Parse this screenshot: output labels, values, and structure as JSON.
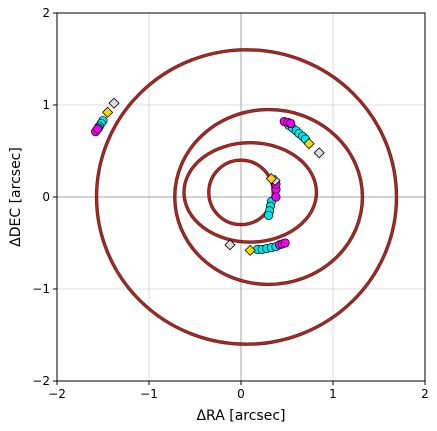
{
  "chart_data": {
    "type": "scatter",
    "title": "",
    "xlabel": "ΔRA [arcsec]",
    "ylabel": "ΔDEC [arcsec]",
    "xlim": [
      -2,
      2
    ],
    "ylim": [
      -2,
      2
    ],
    "xticks": [
      -2,
      -1,
      0,
      1,
      2
    ],
    "yticks": [
      -2,
      -1,
      0,
      1,
      2
    ],
    "xtick_labels": [
      "−2",
      "−1",
      "0",
      "1",
      "2"
    ],
    "ytick_labels": [
      "−2",
      "−1",
      "0",
      "1",
      "2"
    ],
    "grid": true,
    "origin_lines": true,
    "colors": {
      "orbit_model": "#1a1a1a",
      "orbit_fit": "#cc1a10",
      "data_primary": "#00e5e5",
      "data_secondary": "#ee00ee",
      "marker_start": "#dcdcdc",
      "marker_end": "#ffd700"
    },
    "orbits": [
      {
        "cx": 0.0,
        "cy": 0.05,
        "rx": 0.35,
        "ry": 0.35,
        "tilt": 0
      },
      {
        "cx": 0.1,
        "cy": 0.05,
        "rx": 0.72,
        "ry": 0.54,
        "tilt": 0
      },
      {
        "cx": 0.3,
        "cy": 0.0,
        "rx": 1.02,
        "ry": 0.95,
        "tilt": 0
      },
      {
        "cx": 0.06,
        "cy": 0.0,
        "rx": 1.63,
        "ry": 1.6,
        "tilt": 0
      }
    ],
    "series": [
      {
        "color": "#00e5e5",
        "points": [
          [
            -1.5,
            0.83
          ],
          [
            -1.52,
            0.8
          ],
          [
            -1.54,
            0.77
          ],
          [
            -1.55,
            0.75
          ],
          [
            0.52,
            0.78
          ],
          [
            0.56,
            0.75
          ],
          [
            0.6,
            0.72
          ],
          [
            0.63,
            0.69
          ],
          [
            0.67,
            0.66
          ],
          [
            0.7,
            0.63
          ],
          [
            0.33,
            -0.05
          ],
          [
            0.32,
            -0.1
          ],
          [
            0.31,
            -0.15
          ],
          [
            0.3,
            -0.2
          ],
          [
            0.18,
            -0.57
          ],
          [
            0.23,
            -0.57
          ],
          [
            0.28,
            -0.56
          ],
          [
            0.33,
            -0.55
          ],
          [
            0.38,
            -0.54
          ]
        ]
      },
      {
        "color": "#ee00ee",
        "points": [
          [
            -1.58,
            0.71
          ],
          [
            -1.56,
            0.74
          ],
          [
            0.47,
            0.82
          ],
          [
            0.51,
            0.81
          ],
          [
            0.54,
            0.8
          ],
          [
            0.38,
            0.08
          ],
          [
            0.38,
            0.0
          ],
          [
            0.38,
            0.14
          ],
          [
            0.42,
            -0.52
          ],
          [
            0.45,
            -0.51
          ],
          [
            0.48,
            -0.5
          ]
        ]
      }
    ],
    "start_markers": [
      [
        -1.38,
        1.02
      ],
      [
        -0.12,
        -0.52
      ],
      [
        0.85,
        0.48
      ],
      [
        0.37,
        0.18
      ]
    ],
    "end_markers": [
      [
        -1.45,
        0.92
      ],
      [
        0.1,
        -0.58
      ],
      [
        0.74,
        0.58
      ],
      [
        0.33,
        0.2
      ]
    ]
  }
}
